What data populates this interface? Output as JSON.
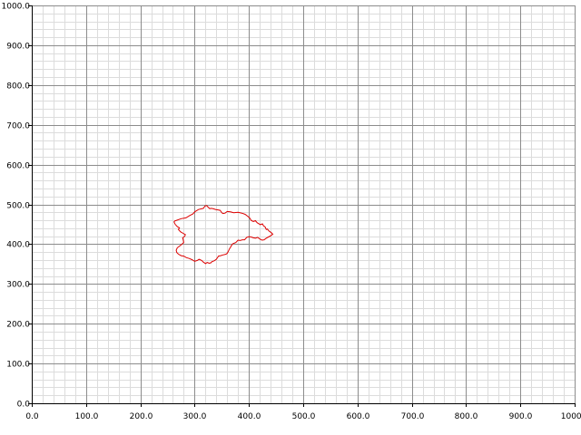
{
  "chart_data": {
    "type": "line",
    "title": "",
    "xlabel": "",
    "ylabel": "",
    "xlim": [
      0,
      1000
    ],
    "ylim": [
      0,
      1000
    ],
    "x_ticks": [
      "0.0",
      "100.0",
      "200.0",
      "300.0",
      "400.0",
      "500.0",
      "600.0",
      "700.0",
      "800.0",
      "900.0",
      "1000.0"
    ],
    "y_ticks": [
      "0.0",
      "100.0",
      "200.0",
      "300.0",
      "400.0",
      "500.0",
      "600.0",
      "700.0",
      "800.0",
      "900.0",
      "1000.0"
    ],
    "x_tick_values": [
      0,
      100,
      200,
      300,
      400,
      500,
      600,
      700,
      800,
      900,
      1000
    ],
    "y_tick_values": [
      0,
      100,
      200,
      300,
      400,
      500,
      600,
      700,
      800,
      900,
      1000
    ],
    "minor_step": 20,
    "grid": true,
    "series": [
      {
        "color": "#dd0000",
        "closed": true,
        "x": [
          265,
          275,
          284,
          290,
          297,
          300,
          307,
          316,
          319,
          322,
          325,
          328,
          330,
          334,
          339,
          343,
          347,
          350,
          352,
          356,
          360,
          366,
          372,
          380,
          387,
          393,
          398,
          402,
          404,
          408,
          412,
          415,
          421,
          425,
          427,
          430,
          432,
          434,
          437,
          440,
          442,
          444,
          440,
          436,
          432,
          428,
          424,
          420,
          416,
          412,
          408,
          404,
          400,
          396,
          392,
          388,
          384,
          380,
          376,
          370,
          368,
          366,
          364,
          362,
          360,
          358,
          356,
          352,
          348,
          344,
          340,
          336,
          332,
          330,
          327,
          323,
          320,
          316,
          313,
          308,
          305,
          300,
          295,
          290,
          285,
          280,
          275,
          270,
          267,
          266,
          268,
          272,
          276,
          280,
          279,
          278,
          282,
          283,
          279,
          274,
          270,
          272,
          268,
          264,
          262,
          264
        ],
        "y": [
          459,
          464,
          466,
          471,
          476,
          481,
          487,
          490,
          496,
          497,
          493,
          489,
          490,
          489,
          487,
          486,
          485,
          479,
          477,
          478,
          482,
          481,
          479,
          480,
          478,
          475,
          470,
          465,
          460,
          457,
          459,
          454,
          449,
          451,
          446,
          443,
          437,
          438,
          433,
          430,
          428,
          425,
          421,
          418,
          415,
          411,
          410,
          413,
          417,
          415,
          416,
          418,
          419,
          417,
          411,
          411,
          409,
          410,
          404,
          401,
          397,
          392,
          388,
          382,
          377,
          375,
          374,
          373,
          371,
          370,
          362,
          358,
          356,
          353,
          352,
          354,
          351,
          355,
          359,
          362,
          359,
          357,
          361,
          364,
          366,
          370,
          371,
          375,
          379,
          385,
          391,
          395,
          399,
          404,
          411,
          416,
          420,
          424,
          427,
          431,
          437,
          441,
          444,
          450,
          456,
          459
        ]
      }
    ]
  }
}
